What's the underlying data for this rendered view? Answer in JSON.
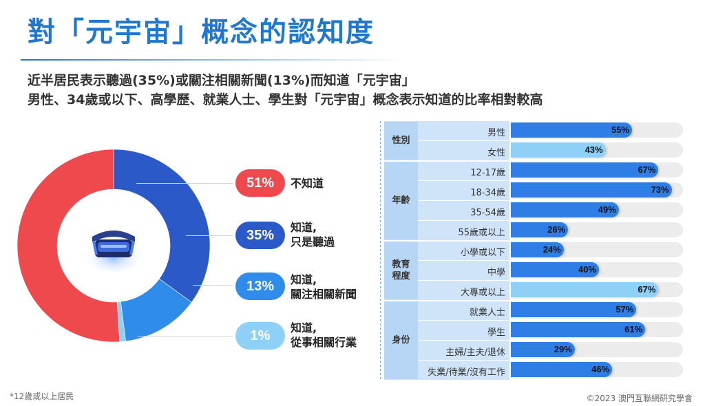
{
  "title": "對「元宇宙」概念的認知度",
  "subtitle_line1": "近半居民表示聽過(35%)或關注相關新聞(13%)而知道「元宇宙」",
  "subtitle_line2": "男性、34歲或以下、高學歷、就業人士、學生對「元宇宙」概念表示知道的比率相對較高",
  "footnote": "*12歲或以上居民",
  "copyright": "©2023 澳門互聯網研究學會",
  "colors": {
    "red": "#ee4a4e",
    "dark_blue": "#2b59c8",
    "mid_blue": "#2f8ceb",
    "light_blue": "#8fd0f7",
    "track": "#ececec"
  },
  "chart_data": [
    {
      "type": "pie",
      "donut": true,
      "slices": [
        {
          "label": "不知道",
          "pct_label": "51%",
          "value": 51,
          "color": "#ee4a4e"
        },
        {
          "label": "知道,\n只是聽過",
          "pct_label": "35%",
          "value": 35,
          "color": "#2b59c8"
        },
        {
          "label": "知道,\n關注相關新聞",
          "pct_label": "13%",
          "value": 13,
          "color": "#2f8ceb"
        },
        {
          "label": "知道,\n從事相關行業",
          "pct_label": "1%",
          "value": 1,
          "color": "#8fd0f7"
        }
      ]
    },
    {
      "type": "bar",
      "orientation": "horizontal",
      "xlim": [
        0,
        100
      ],
      "groups": [
        {
          "name": "性別",
          "rows": [
            {
              "label": "男性",
              "value": 55,
              "value_label": "55%"
            },
            {
              "label": "女性",
              "value": 43,
              "value_label": "43%"
            }
          ]
        },
        {
          "name": "年齡",
          "rows": [
            {
              "label": "12-17歲",
              "value": 67,
              "value_label": "67%"
            },
            {
              "label": "18-34歲",
              "value": 73,
              "value_label": "73%"
            },
            {
              "label": "35-54歲",
              "value": 49,
              "value_label": "49%"
            },
            {
              "label": "55歲或以上",
              "value": 26,
              "value_label": "26%"
            }
          ]
        },
        {
          "name": "教育\n程度",
          "rows": [
            {
              "label": "小學或以下",
              "value": 24,
              "value_label": "24%"
            },
            {
              "label": "中學",
              "value": 40,
              "value_label": "40%"
            },
            {
              "label": "大專或以上",
              "value": 67,
              "value_label": "67%"
            }
          ]
        },
        {
          "name": "身份",
          "rows": [
            {
              "label": "就業人士",
              "value": 57,
              "value_label": "57%"
            },
            {
              "label": "學生",
              "value": 61,
              "value_label": "61%"
            },
            {
              "label": "主婦/主夫/退休",
              "value": 29,
              "value_label": "29%"
            },
            {
              "label": "失業/待業/沒有工作",
              "value": 46,
              "value_label": "46%"
            }
          ]
        }
      ]
    }
  ]
}
